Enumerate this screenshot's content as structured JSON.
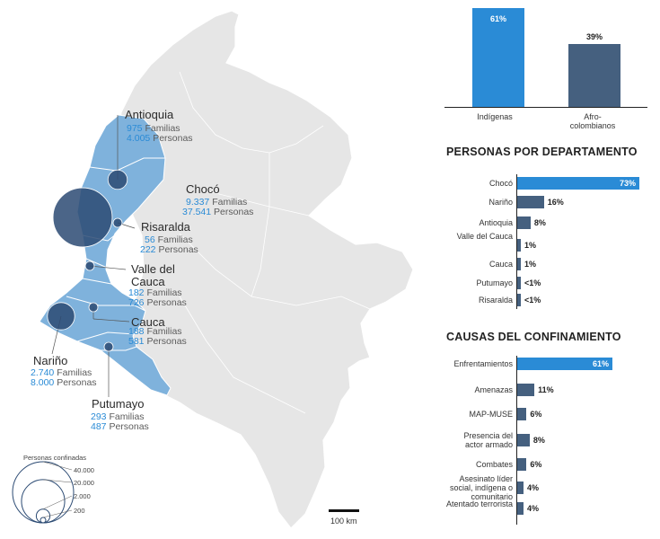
{
  "colors": {
    "highlight": "#2a8bd6",
    "bar": "#45607f",
    "bubble": "#2b4a73",
    "region_fill": "#7fb2dc",
    "country_fill": "#e6e6e6",
    "accent_text": "#2a8bd6"
  },
  "departments": [
    {
      "name": "Antioquia",
      "familias": "975",
      "personas": "4.005",
      "personas_value": 4005
    },
    {
      "name": "Chocó",
      "familias": "9.337",
      "personas": "37.541",
      "personas_value": 37541
    },
    {
      "name": "Risaralda",
      "familias": "56",
      "personas": "222",
      "personas_value": 222
    },
    {
      "name": "Valle del Cauca",
      "familias": "182",
      "personas": "726",
      "personas_value": 726
    },
    {
      "name": "Cauca",
      "familias": "188",
      "personas": "581",
      "personas_value": 581
    },
    {
      "name": "Nariño",
      "familias": "2.740",
      "personas": "8.000",
      "personas_value": 8000
    },
    {
      "name": "Putumayo",
      "familias": "293",
      "personas": "487",
      "personas_value": 487
    }
  ],
  "units": {
    "familias": "Familias",
    "personas": "Personas"
  },
  "legend": {
    "title": "Personas confinadas",
    "values": [
      "40.000",
      "20.000",
      "2.000",
      "200"
    ],
    "numeric": [
      40000,
      20000,
      2000,
      200
    ]
  },
  "scale_label": "100 km",
  "chart_data": [
    {
      "type": "bar",
      "orientation": "vertical",
      "title": "",
      "categories": [
        "Indígenas",
        "Afro-colombianos"
      ],
      "values": [
        61,
        39
      ],
      "labels": [
        "61%",
        "39%"
      ],
      "unit": "%",
      "ylim": [
        0,
        61
      ]
    },
    {
      "type": "bar",
      "orientation": "horizontal",
      "title": "PERSONAS POR DEPARTAMENTO",
      "categories": [
        "Chocó",
        "Nariño",
        "Antioquia",
        "Valle del Cauca",
        "Cauca",
        "Putumayo",
        "Risaralda"
      ],
      "values": [
        73,
        16,
        8,
        1,
        1,
        0.5,
        0.5
      ],
      "labels": [
        "73%",
        "16%",
        "8%",
        "1%",
        "1%",
        "<1%",
        "<1%"
      ],
      "xlim": [
        0,
        73
      ]
    },
    {
      "type": "bar",
      "orientation": "horizontal",
      "title": "CAUSAS DEL CONFINAMIENTO",
      "categories": [
        "Enfrentamientos",
        "Amenazas",
        "MAP-MUSE",
        "Presencia del actor armado",
        "Combates",
        "Asesinato líder social, indígena o comunitario",
        "Atentado terrorista"
      ],
      "values": [
        61,
        11,
        6,
        8,
        6,
        4,
        4
      ],
      "labels": [
        "61%",
        "11%",
        "6%",
        "8%",
        "6%",
        "4%",
        "4%"
      ],
      "xlim": [
        0,
        61
      ]
    }
  ]
}
